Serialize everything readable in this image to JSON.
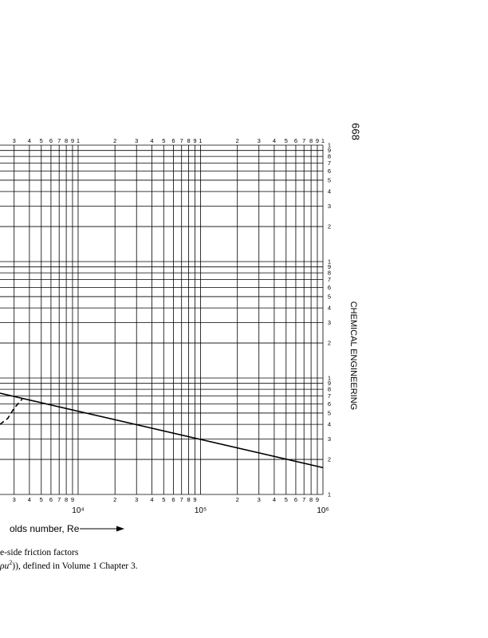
{
  "page_number": "668",
  "running_head": "CHEMICAL ENGINEERING",
  "caption": {
    "line1": "e-side friction factors",
    "line2_pre": "ρu",
    "line2_sup": "2",
    "line2_post": ")), defined in Volume 1 Chapter 3."
  },
  "chart_data": {
    "type": "line",
    "xscale": "log",
    "yscale": "log",
    "grid": true,
    "xlabel": "olds  number, Re",
    "xlim": [
      2300,
      1000000
    ],
    "ylim": [
      1,
      1000
    ],
    "xticks": [
      {
        "value": 3000,
        "label": "3"
      },
      {
        "value": 4000,
        "label": "4"
      },
      {
        "value": 5000,
        "label": "5"
      },
      {
        "value": 6000,
        "label": "6"
      },
      {
        "value": 7000,
        "label": "7"
      },
      {
        "value": 8000,
        "label": "8"
      },
      {
        "value": 9000,
        "label": "9"
      },
      {
        "value": 10000,
        "label": "10⁴"
      },
      {
        "value": 20000,
        "label": "2"
      },
      {
        "value": 30000,
        "label": "3"
      },
      {
        "value": 40000,
        "label": "4"
      },
      {
        "value": 50000,
        "label": "5"
      },
      {
        "value": 60000,
        "label": "6"
      },
      {
        "value": 70000,
        "label": "7"
      },
      {
        "value": 80000,
        "label": "8"
      },
      {
        "value": 90000,
        "label": "9"
      },
      {
        "value": 100000,
        "label": "10⁵"
      },
      {
        "value": 200000,
        "label": "2"
      },
      {
        "value": 300000,
        "label": "3"
      },
      {
        "value": 400000,
        "label": "4"
      },
      {
        "value": 500000,
        "label": "5"
      },
      {
        "value": 600000,
        "label": "6"
      },
      {
        "value": 700000,
        "label": "7"
      },
      {
        "value": 800000,
        "label": "8"
      },
      {
        "value": 900000,
        "label": "9"
      },
      {
        "value": 1000000,
        "label": "10⁶"
      }
    ],
    "x2ticks": [
      {
        "value": 3000,
        "label": "3"
      },
      {
        "value": 4000,
        "label": "4"
      },
      {
        "value": 5000,
        "label": "5"
      },
      {
        "value": 6000,
        "label": "6"
      },
      {
        "value": 7000,
        "label": "7"
      },
      {
        "value": 8000,
        "label": "8"
      },
      {
        "value": 9000,
        "label": "9"
      },
      {
        "value": 10000,
        "label": "1"
      },
      {
        "value": 20000,
        "label": "2"
      },
      {
        "value": 30000,
        "label": "3"
      },
      {
        "value": 40000,
        "label": "4"
      },
      {
        "value": 50000,
        "label": "5"
      },
      {
        "value": 60000,
        "label": "6"
      },
      {
        "value": 70000,
        "label": "7"
      },
      {
        "value": 80000,
        "label": "8"
      },
      {
        "value": 90000,
        "label": "9"
      },
      {
        "value": 100000,
        "label": "1"
      },
      {
        "value": 200000,
        "label": "2"
      },
      {
        "value": 300000,
        "label": "3"
      },
      {
        "value": 400000,
        "label": "4"
      },
      {
        "value": 500000,
        "label": "5"
      },
      {
        "value": 600000,
        "label": "6"
      },
      {
        "value": 700000,
        "label": "7"
      },
      {
        "value": 800000,
        "label": "8"
      },
      {
        "value": 900000,
        "label": "9"
      },
      {
        "value": 1000000,
        "label": "1"
      }
    ],
    "yticks": [
      1,
      2,
      3,
      4,
      5,
      6,
      7,
      8,
      9,
      {
        "value": 10,
        "label": "1"
      },
      {
        "value": 20,
        "label": "2"
      },
      {
        "value": 30,
        "label": "3"
      },
      {
        "value": 40,
        "label": "4"
      },
      {
        "value": 50,
        "label": "5"
      },
      {
        "value": 60,
        "label": "6"
      },
      {
        "value": 70,
        "label": "7"
      },
      {
        "value": 80,
        "label": "8"
      },
      {
        "value": 90,
        "label": "9"
      },
      {
        "value": 100,
        "label": "1"
      },
      {
        "value": 200,
        "label": "2"
      },
      {
        "value": 300,
        "label": "3"
      },
      {
        "value": 400,
        "label": "4"
      },
      {
        "value": 500,
        "label": "5"
      },
      {
        "value": 600,
        "label": "6"
      },
      {
        "value": 700,
        "label": "7"
      },
      {
        "value": 800,
        "label": "8"
      },
      {
        "value": 900,
        "label": "9"
      },
      {
        "value": 1000,
        "label": "1"
      }
    ],
    "series": [
      {
        "color": "#000000",
        "dash": false,
        "x": [
          2300,
          1000000
        ],
        "values": [
          7.4,
          1.7
        ]
      },
      {
        "color": "#000000",
        "dash": true,
        "x": [
          2300,
          2660,
          3000,
          3490
        ],
        "values": [
          4.0,
          4.5,
          5.5,
          6.6
        ]
      }
    ]
  }
}
